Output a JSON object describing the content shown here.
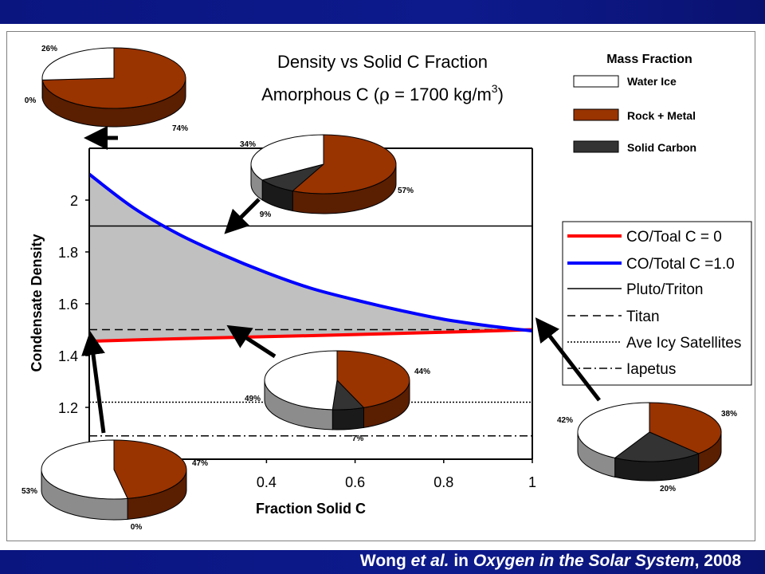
{
  "slide": {
    "credit_pre": "Wong ",
    "credit_etal": "et al.",
    "credit_mid": " in ",
    "credit_book": "Oxygen in the Solar System",
    "credit_post": ", 2008"
  },
  "chart_data": {
    "type": "line",
    "title": "Density vs Solid C Fraction",
    "subtitle_pre": "Amorphous C (",
    "subtitle_rho": "ρ",
    "subtitle_mid": " = 1700 kg/m",
    "subtitle_exp": "3",
    "subtitle_post": ")",
    "xlabel": "Fraction Solid C",
    "ylabel": "Condensate Density",
    "xlim": [
      0,
      1
    ],
    "ylim": [
      1.0,
      2.2
    ],
    "x_ticks": [
      "0.4",
      "0.6",
      "0.8",
      "1"
    ],
    "x_tick_values": [
      0.4,
      0.6,
      0.8,
      1.0
    ],
    "y_ticks": [
      "2",
      "1.8",
      "1.6",
      "1.4",
      "1.2"
    ],
    "y_tick_values": [
      2.0,
      1.8,
      1.6,
      1.4,
      1.2
    ],
    "grid": false,
    "series": [
      {
        "name": "CO/Toal C = 0",
        "color": "#ff0000",
        "style": "solid",
        "x": [
          0,
          0.2,
          0.4,
          0.6,
          0.8,
          1.0
        ],
        "y": [
          1.455,
          1.465,
          1.473,
          1.481,
          1.49,
          1.5
        ]
      },
      {
        "name": "CO/Total C =1.0",
        "color": "#0000ff",
        "style": "solid",
        "x": [
          0,
          0.1,
          0.2,
          0.3,
          0.4,
          0.5,
          0.6,
          0.7,
          0.8,
          0.9,
          1.0
        ],
        "y": [
          2.1,
          1.97,
          1.87,
          1.79,
          1.72,
          1.66,
          1.615,
          1.575,
          1.54,
          1.515,
          1.495
        ]
      },
      {
        "name": "Pluto/Triton",
        "color": "#000000",
        "style": "solid",
        "y_const": 1.9
      },
      {
        "name": "Titan",
        "color": "#000000",
        "style": "dashed",
        "y_const": 1.5
      },
      {
        "name": "Ave Icy Satellites",
        "color": "#000000",
        "style": "dotted",
        "y_const": 1.22
      },
      {
        "name": "Iapetus",
        "color": "#000000",
        "style": "dashdot",
        "y_const": 1.09
      }
    ],
    "mass_fraction_legend": {
      "title": "Mass Fraction",
      "items": [
        {
          "label": "Water Ice",
          "color": "#ffffff"
        },
        {
          "label": "Rock + Metal",
          "color": "#993300"
        },
        {
          "label": "Solid Carbon",
          "color": "#333333"
        }
      ]
    },
    "pies": [
      {
        "id": "pie-top-left",
        "labels": [
          "26%",
          "74%",
          "0%"
        ],
        "water": 26,
        "rock": 74,
        "carbon": 0
      },
      {
        "id": "pie-mid-top",
        "labels": [
          "34%",
          "57%",
          "9%"
        ],
        "water": 34,
        "rock": 57,
        "carbon": 9
      },
      {
        "id": "pie-center",
        "labels": [
          "49%",
          "44%",
          "7%"
        ],
        "water": 49,
        "rock": 44,
        "carbon": 7
      },
      {
        "id": "pie-bottom-left",
        "labels": [
          "53%",
          "47%",
          "0%"
        ],
        "water": 53,
        "rock": 47,
        "carbon": 0
      },
      {
        "id": "pie-right",
        "labels": [
          "42%",
          "38%",
          "20%"
        ],
        "water": 42,
        "rock": 38,
        "carbon": 20
      }
    ]
  }
}
